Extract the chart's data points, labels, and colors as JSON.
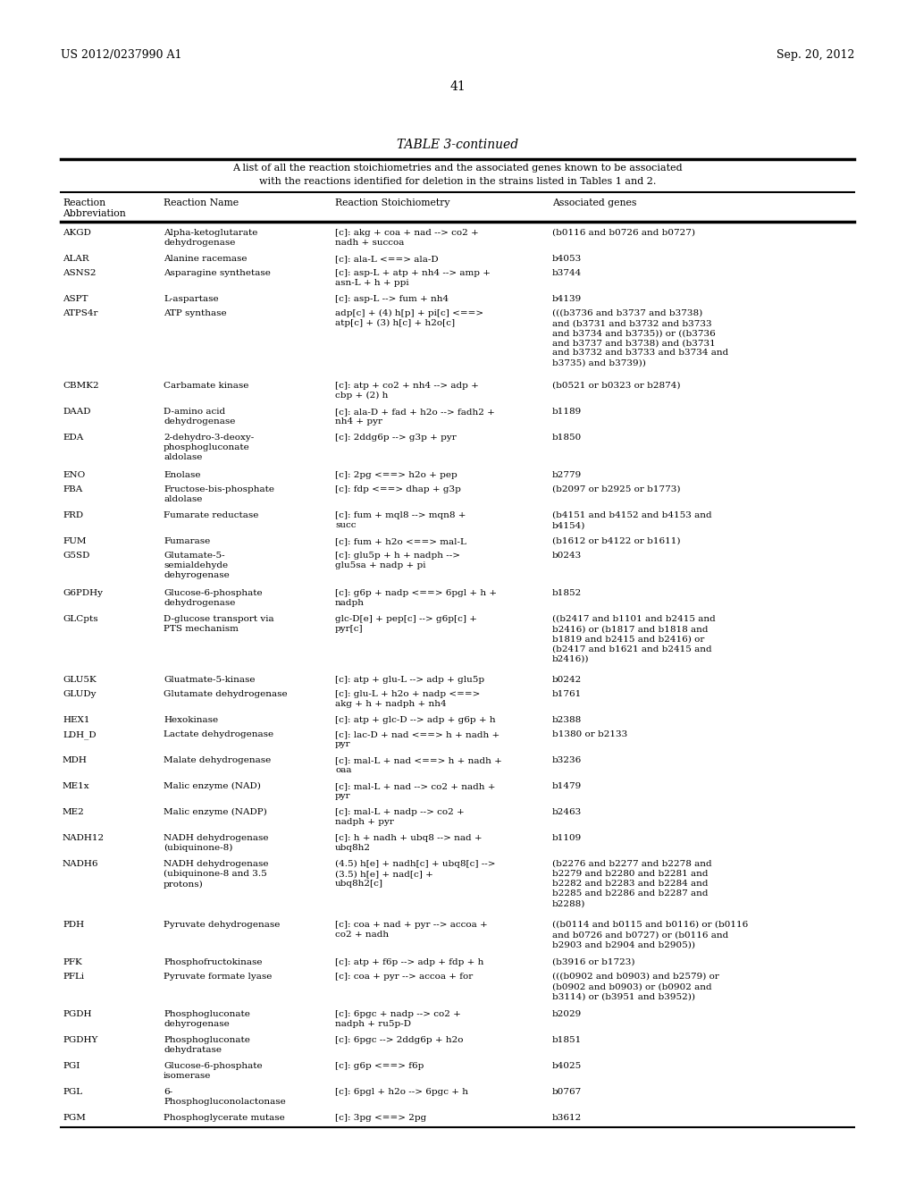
{
  "header_left": "US 2012/0237990 A1",
  "header_right": "Sep. 20, 2012",
  "page_number": "41",
  "table_title": "TABLE 3-continued",
  "table_caption_line1": "A list of all the reaction stoichiometries and the associated genes known to be associated",
  "table_caption_line2": "with the reactions identified for deletion in the strains listed in Tables 1 and 2.",
  "col_headers": [
    "Reaction\nAbbreviation",
    "Reaction Name",
    "Reaction Stoichiometry",
    "Associated genes"
  ],
  "rows": [
    [
      "AKGD",
      "Alpha-ketoglutarate\ndehydrogenase",
      "[c]: akg + coa + nad --> co2 +\nnadh + succoa",
      "(b0116 and b0726 and b0727)"
    ],
    [
      "ALAR",
      "Alanine racemase",
      "[c]: ala-L <==> ala-D",
      "b4053"
    ],
    [
      "ASNS2",
      "Asparagine synthetase",
      "[c]: asp-L + atp + nh4 --> amp +\nasn-L + h + ppi",
      "b3744"
    ],
    [
      "ASPT",
      "L-aspartase",
      "[c]: asp-L --> fum + nh4",
      "b4139"
    ],
    [
      "ATPS4r",
      "ATP synthase",
      "adp[c] + (4) h[p] + pi[c] <==>\natp[c] + (3) h[c] + h2o[c]",
      "(((b3736 and b3737 and b3738)\nand (b3731 and b3732 and b3733\nand b3734 and b3735)) or ((b3736\nand b3737 and b3738) and (b3731\nand b3732 and b3733 and b3734 and\nb3735) and b3739))"
    ],
    [
      "CBMK2",
      "Carbamate kinase",
      "[c]: atp + co2 + nh4 --> adp +\ncbp + (2) h",
      "(b0521 or b0323 or b2874)"
    ],
    [
      "DAAD",
      "D-amino acid\ndehydrogenase",
      "[c]: ala-D + fad + h2o --> fadh2 +\nnh4 + pyr",
      "b1189"
    ],
    [
      "EDA",
      "2-dehydro-3-deoxy-\nphosphogluconate\naldolase",
      "[c]: 2ddg6p --> g3p + pyr",
      "b1850"
    ],
    [
      "ENO",
      "Enolase",
      "[c]: 2pg <==> h2o + pep",
      "b2779"
    ],
    [
      "FBA",
      "Fructose-bis-phosphate\naldolase",
      "[c]: fdp <==> dhap + g3p",
      "(b2097 or b2925 or b1773)"
    ],
    [
      "FRD",
      "Fumarate reductase",
      "[c]: fum + mql8 --> mqn8 +\nsucc",
      "(b4151 and b4152 and b4153 and\nb4154)"
    ],
    [
      "FUM",
      "Fumarase",
      "[c]: fum + h2o <==> mal-L",
      "(b1612 or b4122 or b1611)"
    ],
    [
      "G5SD",
      "Glutamate-5-\nsemialdehyde\ndehyrogenase",
      "[c]: glu5p + h + nadph -->\nglu5sa + nadp + pi",
      "b0243"
    ],
    [
      "G6PDHy",
      "Glucose-6-phosphate\ndehydrogenase",
      "[c]: g6p + nadp <==> 6pgl + h +\nnadph",
      "b1852"
    ],
    [
      "GLCpts",
      "D-glucose transport via\nPTS mechanism",
      "glc-D[e] + pep[c] --> g6p[c] +\npyr[c]",
      "((b2417 and b1101 and b2415 and\nb2416) or (b1817 and b1818 and\nb1819 and b2415 and b2416) or\n(b2417 and b1621 and b2415 and\nb2416))"
    ],
    [
      "GLU5K",
      "Gluatmate-5-kinase",
      "[c]: atp + glu-L --> adp + glu5p",
      "b0242"
    ],
    [
      "GLUDy",
      "Glutamate dehydrogenase",
      "[c]: glu-L + h2o + nadp <==>\nakg + h + nadph + nh4",
      "b1761"
    ],
    [
      "HEX1",
      "Hexokinase",
      "[c]: atp + glc-D --> adp + g6p + h",
      "b2388"
    ],
    [
      "LDH_D",
      "Lactate dehydrogenase",
      "[c]: lac-D + nad <==> h + nadh +\npyr",
      "b1380 or b2133"
    ],
    [
      "MDH",
      "Malate dehydrogenase",
      "[c]: mal-L + nad <==> h + nadh +\noaa",
      "b3236"
    ],
    [
      "ME1x",
      "Malic enzyme (NAD)",
      "[c]: mal-L + nad --> co2 + nadh +\npyr",
      "b1479"
    ],
    [
      "ME2",
      "Malic enzyme (NADP)",
      "[c]: mal-L + nadp --> co2 +\nnadph + pyr",
      "b2463"
    ],
    [
      "NADH12",
      "NADH dehydrogenase\n(ubiquinone-8)",
      "[c]: h + nadh + ubq8 --> nad +\nubq8h2",
      "b1109"
    ],
    [
      "NADH6",
      "NADH dehydrogenase\n(ubiquinone-8 and 3.5\nprotons)",
      "(4.5) h[e] + nadh[c] + ubq8[c] -->\n(3.5) h[e] + nad[c] +\nubq8h2[c]",
      "(b2276 and b2277 and b2278 and\nb2279 and b2280 and b2281 and\nb2282 and b2283 and b2284 and\nb2285 and b2286 and b2287 and\nb2288)"
    ],
    [
      "PDH",
      "Pyruvate dehydrogenase",
      "[c]: coa + nad + pyr --> accoa +\nco2 + nadh",
      "((b0114 and b0115 and b0116) or (b0116\nand b0726 and b0727) or (b0116 and\nb2903 and b2904 and b2905))"
    ],
    [
      "PFK",
      "Phosphofructokinase",
      "[c]: atp + f6p --> adp + fdp + h",
      "(b3916 or b1723)"
    ],
    [
      "PFLi",
      "Pyruvate formate lyase",
      "[c]: coa + pyr --> accoa + for",
      "(((b0902 and b0903) and b2579) or\n(b0902 and b0903) or (b0902 and\nb3114) or (b3951 and b3952))"
    ],
    [
      "PGDH",
      "Phosphogluconate\ndehyrogenase",
      "[c]: 6pgc + nadp --> co2 +\nnadph + ru5p-D",
      "b2029"
    ],
    [
      "PGDHY",
      "Phosphogluconate\ndehydratase",
      "[c]: 6pgc --> 2ddg6p + h2o",
      "b1851"
    ],
    [
      "PGI",
      "Glucose-6-phosphate\nisomerase",
      "[c]: g6p <==> f6p",
      "b4025"
    ],
    [
      "PGL",
      "6-\nPhosphogluconolactonase",
      "[c]: 6pgl + h2o --> 6pgc + h",
      "b0767"
    ],
    [
      "PGM",
      "Phosphoglycerate mutase",
      "[c]: 3pg <==> 2pg",
      "b3612"
    ]
  ],
  "background_color": "#ffffff",
  "text_color": "#000000",
  "row_heights_lines": {
    "AKGD": 2,
    "ALAR": 1,
    "ASNS2": 2,
    "ASPT": 1,
    "ATPS4r": 6,
    "CBMK2": 2,
    "DAAD": 2,
    "EDA": 3,
    "ENO": 1,
    "FBA": 2,
    "FRD": 2,
    "FUM": 1,
    "G5SD": 3,
    "G6PDHy": 2,
    "GLCpts": 5,
    "GLU5K": 1,
    "GLUDy": 2,
    "HEX1": 1,
    "LDH_D": 2,
    "MDH": 2,
    "ME1x": 2,
    "ME2": 2,
    "NADH12": 2,
    "NADH6": 5,
    "PDH": 3,
    "PFK": 1,
    "PFLi": 3,
    "PGDH": 2,
    "PGDHY": 2,
    "PGI": 2,
    "PGL": 2,
    "PGM": 1
  }
}
